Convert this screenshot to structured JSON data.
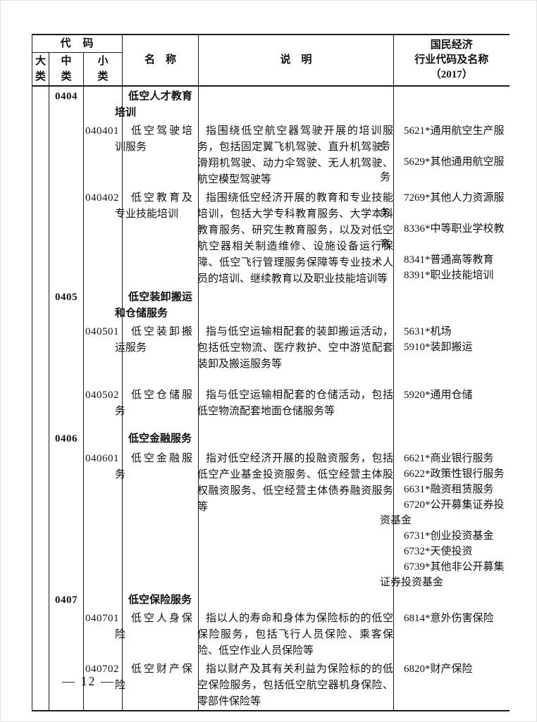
{
  "table": {
    "header": {
      "code_group": "代　码",
      "sub_major": "大类",
      "sub_medium": "中类",
      "sub_minor": "小类",
      "name": "名　称",
      "description": "说　明",
      "nec": [
        "国民经济",
        "行业代码及名称",
        "（2017）"
      ]
    },
    "rows": [
      {
        "type": "category",
        "major_code": "",
        "medium_code": "0404",
        "minor_code": "",
        "name": "低空人才教育培训",
        "description": "",
        "nec_codes": []
      },
      {
        "type": "item",
        "major_code": "",
        "medium_code": "",
        "minor_code": "040401",
        "name": "低空驾驶培训服务",
        "description": "指围绕低空航空器驾驶开展的培训服务，包括固定翼飞机驾驶、直升机驾驶、滑翔机驾驶、动力伞驾驶、无人机驾驶、航空模型驾驶等",
        "nec_codes": [
          "5621*通用航空生产服务",
          "5629*其他通用航空服务"
        ]
      },
      {
        "type": "item",
        "major_code": "",
        "medium_code": "",
        "minor_code": "040402",
        "name": "低空教育及专业技能培训",
        "description": "指围绕低空经济开展的教育和专业技能培训，包括大学专科教育服务、大学本科教育服务、研究生教育服务，以及对低空航空器相关制造维修、设施设备运行保障、低空飞行管理服务保障等专业技术人员的培训、继续教育以及职业技能培训等",
        "nec_codes": [
          "7269*其他人力资源服务",
          "8336*中等职业学校教育",
          "8341*普通高等教育",
          "8391*职业技能培训"
        ]
      },
      {
        "type": "category",
        "major_code": "",
        "medium_code": "0405",
        "minor_code": "",
        "name": "低空装卸搬运和仓储服务",
        "description": "",
        "nec_codes": []
      },
      {
        "type": "item",
        "major_code": "",
        "medium_code": "",
        "minor_code": "040501",
        "name": "低空装卸搬运服务",
        "description": "指与低空运输相配套的装卸搬运活动，包括低空物流、医疗救护、空中游览配套装卸及搬运服务等",
        "nec_codes": [
          "5631*机场",
          "5910*装卸搬运"
        ]
      },
      {
        "type": "item",
        "major_code": "",
        "medium_code": "",
        "minor_code": "040502",
        "name": "低空仓储服务",
        "description": "指与低空运输相配套的仓储活动，包括低空物流配套地面仓储服务等",
        "nec_codes": [
          "5920*通用仓储"
        ]
      },
      {
        "type": "category",
        "major_code": "",
        "medium_code": "0406",
        "minor_code": "",
        "name": "低空金融服务",
        "description": "",
        "nec_codes": []
      },
      {
        "type": "item",
        "major_code": "",
        "medium_code": "",
        "minor_code": "040601",
        "name": "低空金融服务",
        "description": "指对低空经济开展的投融资服务，包括低空产业基金投资服务、低空经营主体股权融资服务、低空经营主体债券融资服务等",
        "nec_codes": [
          "6621*商业银行服务",
          "6622*政策性银行服务",
          "6631*融资租赁服务",
          "6720*公开募集证券投资基金",
          "6731*创业投资基金",
          "6732*天使投资",
          "6739*其他非公开募集证券投资基金"
        ]
      },
      {
        "type": "category",
        "major_code": "",
        "medium_code": "0407",
        "minor_code": "",
        "name": "低空保险服务",
        "description": "",
        "nec_codes": []
      },
      {
        "type": "item",
        "major_code": "",
        "medium_code": "",
        "minor_code": "040701",
        "name": "低空人身保险",
        "description": "指以人的寿命和身体为保险标的的低空保险服务，包括飞行人员保险、乘客保险、低空作业人员保险等",
        "nec_codes": [
          "6814*意外伤害保险"
        ]
      },
      {
        "type": "item",
        "major_code": "",
        "medium_code": "",
        "minor_code": "040702",
        "name": "低空财产保险",
        "description": "指以财产及其有关利益为保险标的的低空保险服务，包括低空航空器机身保险、零部件保险等",
        "nec_codes": [
          "6820*财产保险"
        ]
      }
    ]
  },
  "footer": {
    "page_number": "—  12  —"
  }
}
